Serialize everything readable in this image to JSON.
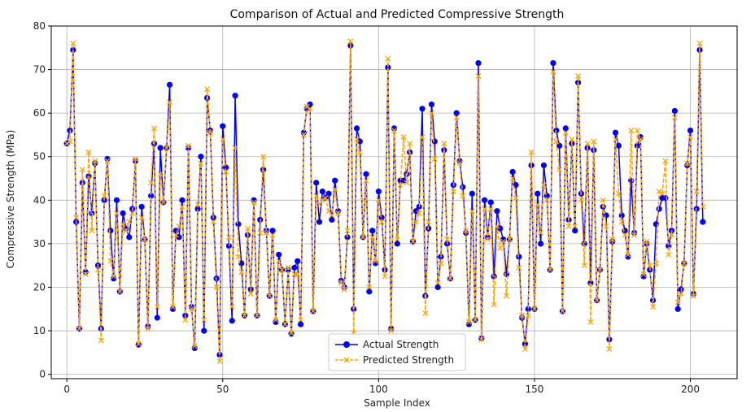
{
  "chart_data": {
    "type": "line",
    "title": "Comparison of Actual and Predicted Compressive Strength",
    "xlabel": "Sample Index",
    "ylabel": "Compressive Strength (MPa)",
    "xlim": [
      -5,
      215
    ],
    "ylim": [
      -1,
      80
    ],
    "xticks": [
      0,
      50,
      100,
      150,
      200
    ],
    "yticks": [
      0,
      10,
      20,
      30,
      40,
      50,
      60,
      70,
      80
    ],
    "grid": true,
    "legend_position": "bottom-center",
    "series": [
      {
        "name": "Actual Strength",
        "color": "#0000ff",
        "linestyle": "solid",
        "marker": "circle",
        "values": [
          53,
          56,
          74.5,
          35,
          10.5,
          44,
          23.5,
          45.5,
          37,
          48.5,
          25,
          10.5,
          40,
          49.5,
          33,
          22,
          40,
          19,
          37,
          33.5,
          31.5,
          38,
          49,
          6.8,
          38.5,
          31,
          11,
          41,
          53,
          13,
          52,
          39.5,
          52,
          66.5,
          15,
          33,
          31.5,
          40,
          13.5,
          52,
          15.5,
          6,
          38,
          50,
          10,
          63.5,
          56,
          36,
          22,
          4.5,
          57,
          47.5,
          29.5,
          12.3,
          64,
          34.5,
          25.5,
          13.5,
          32,
          19.5,
          40,
          13.5,
          35.5,
          47,
          33,
          18,
          33,
          12,
          27.5,
          24,
          11.5,
          24,
          9.3,
          24.5,
          26,
          11.5,
          55.5,
          61,
          62,
          14.5,
          44,
          35,
          42,
          40.5,
          41.5,
          35.5,
          44.5,
          37.5,
          21.5,
          20,
          31.5,
          75.5,
          15,
          56.5,
          53.5,
          31.5,
          46,
          19,
          33,
          25.5,
          42,
          36,
          24,
          70.5,
          10.5,
          56.5,
          30,
          44.5,
          44.5,
          46,
          51,
          30.5,
          37.5,
          38.5,
          61,
          18,
          33.5,
          62,
          53.5,
          20,
          27,
          51.5,
          30,
          22,
          43.5,
          60,
          49,
          43,
          32.5,
          11.5,
          41.5,
          12.5,
          71.5,
          8.3,
          40,
          31.5,
          39.5,
          22.5,
          37.5,
          33.5,
          31,
          23,
          31,
          46.5,
          43.5,
          27,
          13,
          7,
          15,
          48,
          15,
          41.5,
          30,
          48,
          41,
          24,
          71.5,
          56,
          52.5,
          14.5,
          56.5,
          35.5,
          53,
          33,
          67,
          41.5,
          30,
          52,
          21,
          51.5,
          17,
          24,
          38.5,
          36.5,
          8,
          30.5,
          55.5,
          52.5,
          36.5,
          33,
          27,
          44.5,
          32.5,
          52.5,
          54.5,
          22.5,
          30,
          24,
          17,
          34.5,
          38,
          40.5,
          40.5,
          29.5,
          33,
          60.5,
          15,
          19.5,
          25.5,
          48,
          56,
          18.5,
          38,
          74.5,
          35
        ]
      },
      {
        "name": "Predicted Strength",
        "color": "#ffa500",
        "linestyle": "dashed",
        "marker": "x",
        "values": [
          53,
          53.5,
          76,
          36,
          10.5,
          47,
          23,
          51,
          33,
          49,
          24,
          7.8,
          41,
          49,
          26,
          22.5,
          37,
          19,
          34.5,
          33,
          35,
          37,
          49.5,
          7,
          36,
          31,
          10.5,
          44,
          56.5,
          15.5,
          46,
          39.5,
          52,
          62.5,
          15.5,
          32,
          34,
          38.5,
          12.5,
          52.5,
          15,
          6.5,
          39,
          48.5,
          12.5,
          65.5,
          55.5,
          35,
          20,
          3,
          54,
          46.5,
          31.5,
          15.5,
          52,
          27,
          23.5,
          13.5,
          33.5,
          18.5,
          39.5,
          13.5,
          32.5,
          50,
          32.5,
          18,
          32,
          12.5,
          26,
          24,
          11.5,
          24.5,
          9.5,
          23,
          23,
          12.5,
          55,
          61.5,
          61,
          14.5,
          41,
          39,
          40,
          40.5,
          37.5,
          36.5,
          42.5,
          37,
          21,
          19.5,
          33,
          76.5,
          9.5,
          54,
          51,
          31.5,
          44.5,
          20,
          31.5,
          26,
          40,
          35,
          22.5,
          72.5,
          10,
          56,
          31,
          43.5,
          54.5,
          44,
          53,
          30.5,
          35,
          37,
          54.5,
          14,
          35,
          60,
          49.5,
          21,
          25.5,
          53,
          31,
          22,
          42,
          59,
          48.5,
          41,
          33,
          12,
          37.5,
          12.5,
          68.5,
          8,
          38,
          31,
          38,
          16,
          34,
          29,
          30.5,
          18,
          31,
          45,
          40.5,
          24.5,
          13.5,
          5.8,
          13.5,
          51,
          15,
          39,
          32.5,
          43.5,
          40,
          24,
          69.5,
          53.5,
          47,
          14.5,
          55.5,
          34,
          54,
          34,
          68.5,
          40,
          25,
          53,
          12,
          53.5,
          17,
          24,
          40,
          34,
          5.8,
          31,
          54,
          41.5,
          35,
          32,
          27.5,
          56,
          32,
          56,
          54,
          23,
          30.5,
          25,
          15.5,
          25.5,
          42,
          41.5,
          49,
          27.5,
          32,
          59,
          16.5,
          18.5,
          25.5,
          48.5,
          54.5,
          18,
          42,
          76,
          38.5
        ]
      }
    ]
  }
}
